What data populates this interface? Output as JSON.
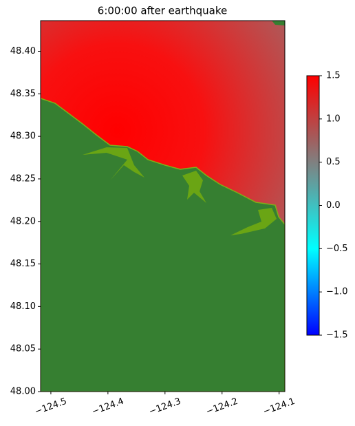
{
  "chart_data": {
    "type": "heatmap",
    "title": "6:00:00 after earthquake",
    "xlim": [
      -124.518,
      -124.09
    ],
    "ylim": [
      48.0,
      48.436
    ],
    "xticks": [
      {
        "value": -124.5,
        "label": "−124.5"
      },
      {
        "value": -124.4,
        "label": "−124.4"
      },
      {
        "value": -124.3,
        "label": "−124.3"
      },
      {
        "value": -124.2,
        "label": "−124.2"
      },
      {
        "value": -124.1,
        "label": "−124.1"
      }
    ],
    "yticks": [
      {
        "value": 48.0,
        "label": "48.00"
      },
      {
        "value": 48.05,
        "label": "48.05"
      },
      {
        "value": 48.1,
        "label": "48.10"
      },
      {
        "value": 48.15,
        "label": "48.15"
      },
      {
        "value": 48.2,
        "label": "48.20"
      },
      {
        "value": 48.25,
        "label": "48.25"
      },
      {
        "value": 48.3,
        "label": "48.30"
      },
      {
        "value": 48.35,
        "label": "48.35"
      },
      {
        "value": 48.4,
        "label": "48.40"
      }
    ],
    "colorbar": {
      "lim": [
        -1.5,
        1.5
      ],
      "ticks": [
        1.5,
        {
          "value": 1.0,
          "label": "1.0"
        },
        0.5,
        {
          "value": 0.0,
          "label": "0.0"
        },
        {
          "value": -0.5,
          "label": "−0.5"
        },
        {
          "value": -1.0,
          "label": "−1.0"
        },
        {
          "value": -1.5,
          "label": "−1.5"
        }
      ],
      "colors": [
        "#0000ff",
        "#00ffff",
        "#808080",
        "#ff0000"
      ]
    }
  }
}
